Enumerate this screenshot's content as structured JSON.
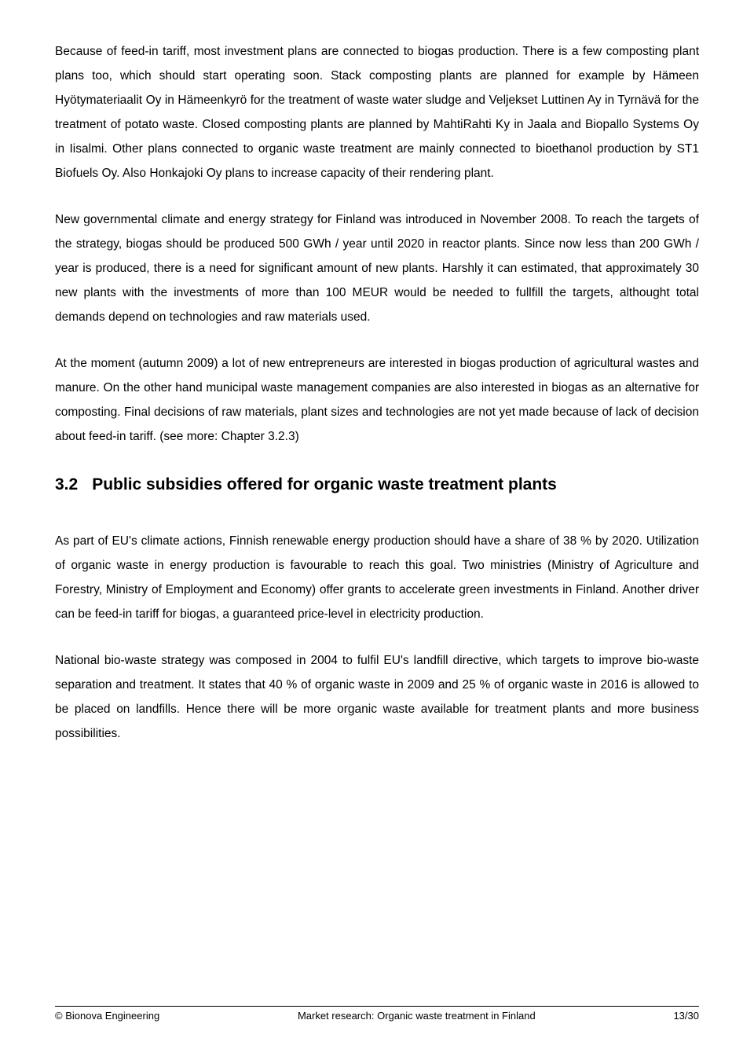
{
  "paragraphs": {
    "p1": "Because of feed-in tariff, most investment plans are connected to biogas production. There is a few composting plant plans too, which should start operating soon. Stack composting plants are planned for example by Hämeen Hyötymateriaalit Oy in Hämeenkyrö for the treatment of waste water sludge and Veljekset Luttinen Ay in Tyrnävä for the treatment of potato waste. Closed composting plants are planned by MahtiRahti Ky in Jaala and Biopallo Systems Oy in Iisalmi. Other plans connected to organic waste treatment are mainly connected to bioethanol production by ST1 Biofuels Oy. Also Honkajoki Oy plans to increase capacity of their rendering plant.",
    "p2": "New governmental climate and energy strategy for Finland was introduced in November 2008. To reach the targets of  the strategy, biogas should be produced 500 GWh / year until 2020 in reactor plants. Since now less than 200 GWh / year is produced, there is a need for significant amount of new plants. Harshly it can estimated, that approximately 30 new plants with the investments of more than 100 MEUR would be needed to fullfill the targets, althought total demands depend on technologies  and raw materials used.",
    "p3": "At the moment (autumn 2009) a lot of new entrepreneurs are interested in biogas production of agricultural wastes and manure. On the other hand municipal waste management companies are also interested in biogas as an alternative for composting. Final decisions of raw materials, plant sizes and technologies are not yet made because of lack of decision about feed-in tariff. (see more: Chapter 3.2.3)",
    "p4": "As part of EU's climate actions, Finnish renewable energy production should have a share of 38 % by 2020. Utilization of organic waste in energy production is favourable to reach this goal. Two ministries (Ministry of Agriculture and Forestry, Ministry of Employment and Economy) offer grants to accelerate green investments in Finland. Another driver can be feed-in tariff for biogas, a guaranteed price-level in electricity production.",
    "p5": "National bio-waste strategy was composed in 2004 to fulfil EU's landfill directive, which targets to improve bio-waste separation and treatment. It states that 40 % of organic waste in 2009 and 25 % of organic waste in 2016 is allowed to be placed on landfills. Hence there will be more organic waste available for treatment plants and more business possibilities."
  },
  "heading": {
    "number": "3.2",
    "title": "Public subsidies offered for organic waste treatment plants"
  },
  "footer": {
    "left": "© Bionova Engineering",
    "center": "Market research: Organic waste treatment in Finland",
    "right": "13/30"
  }
}
